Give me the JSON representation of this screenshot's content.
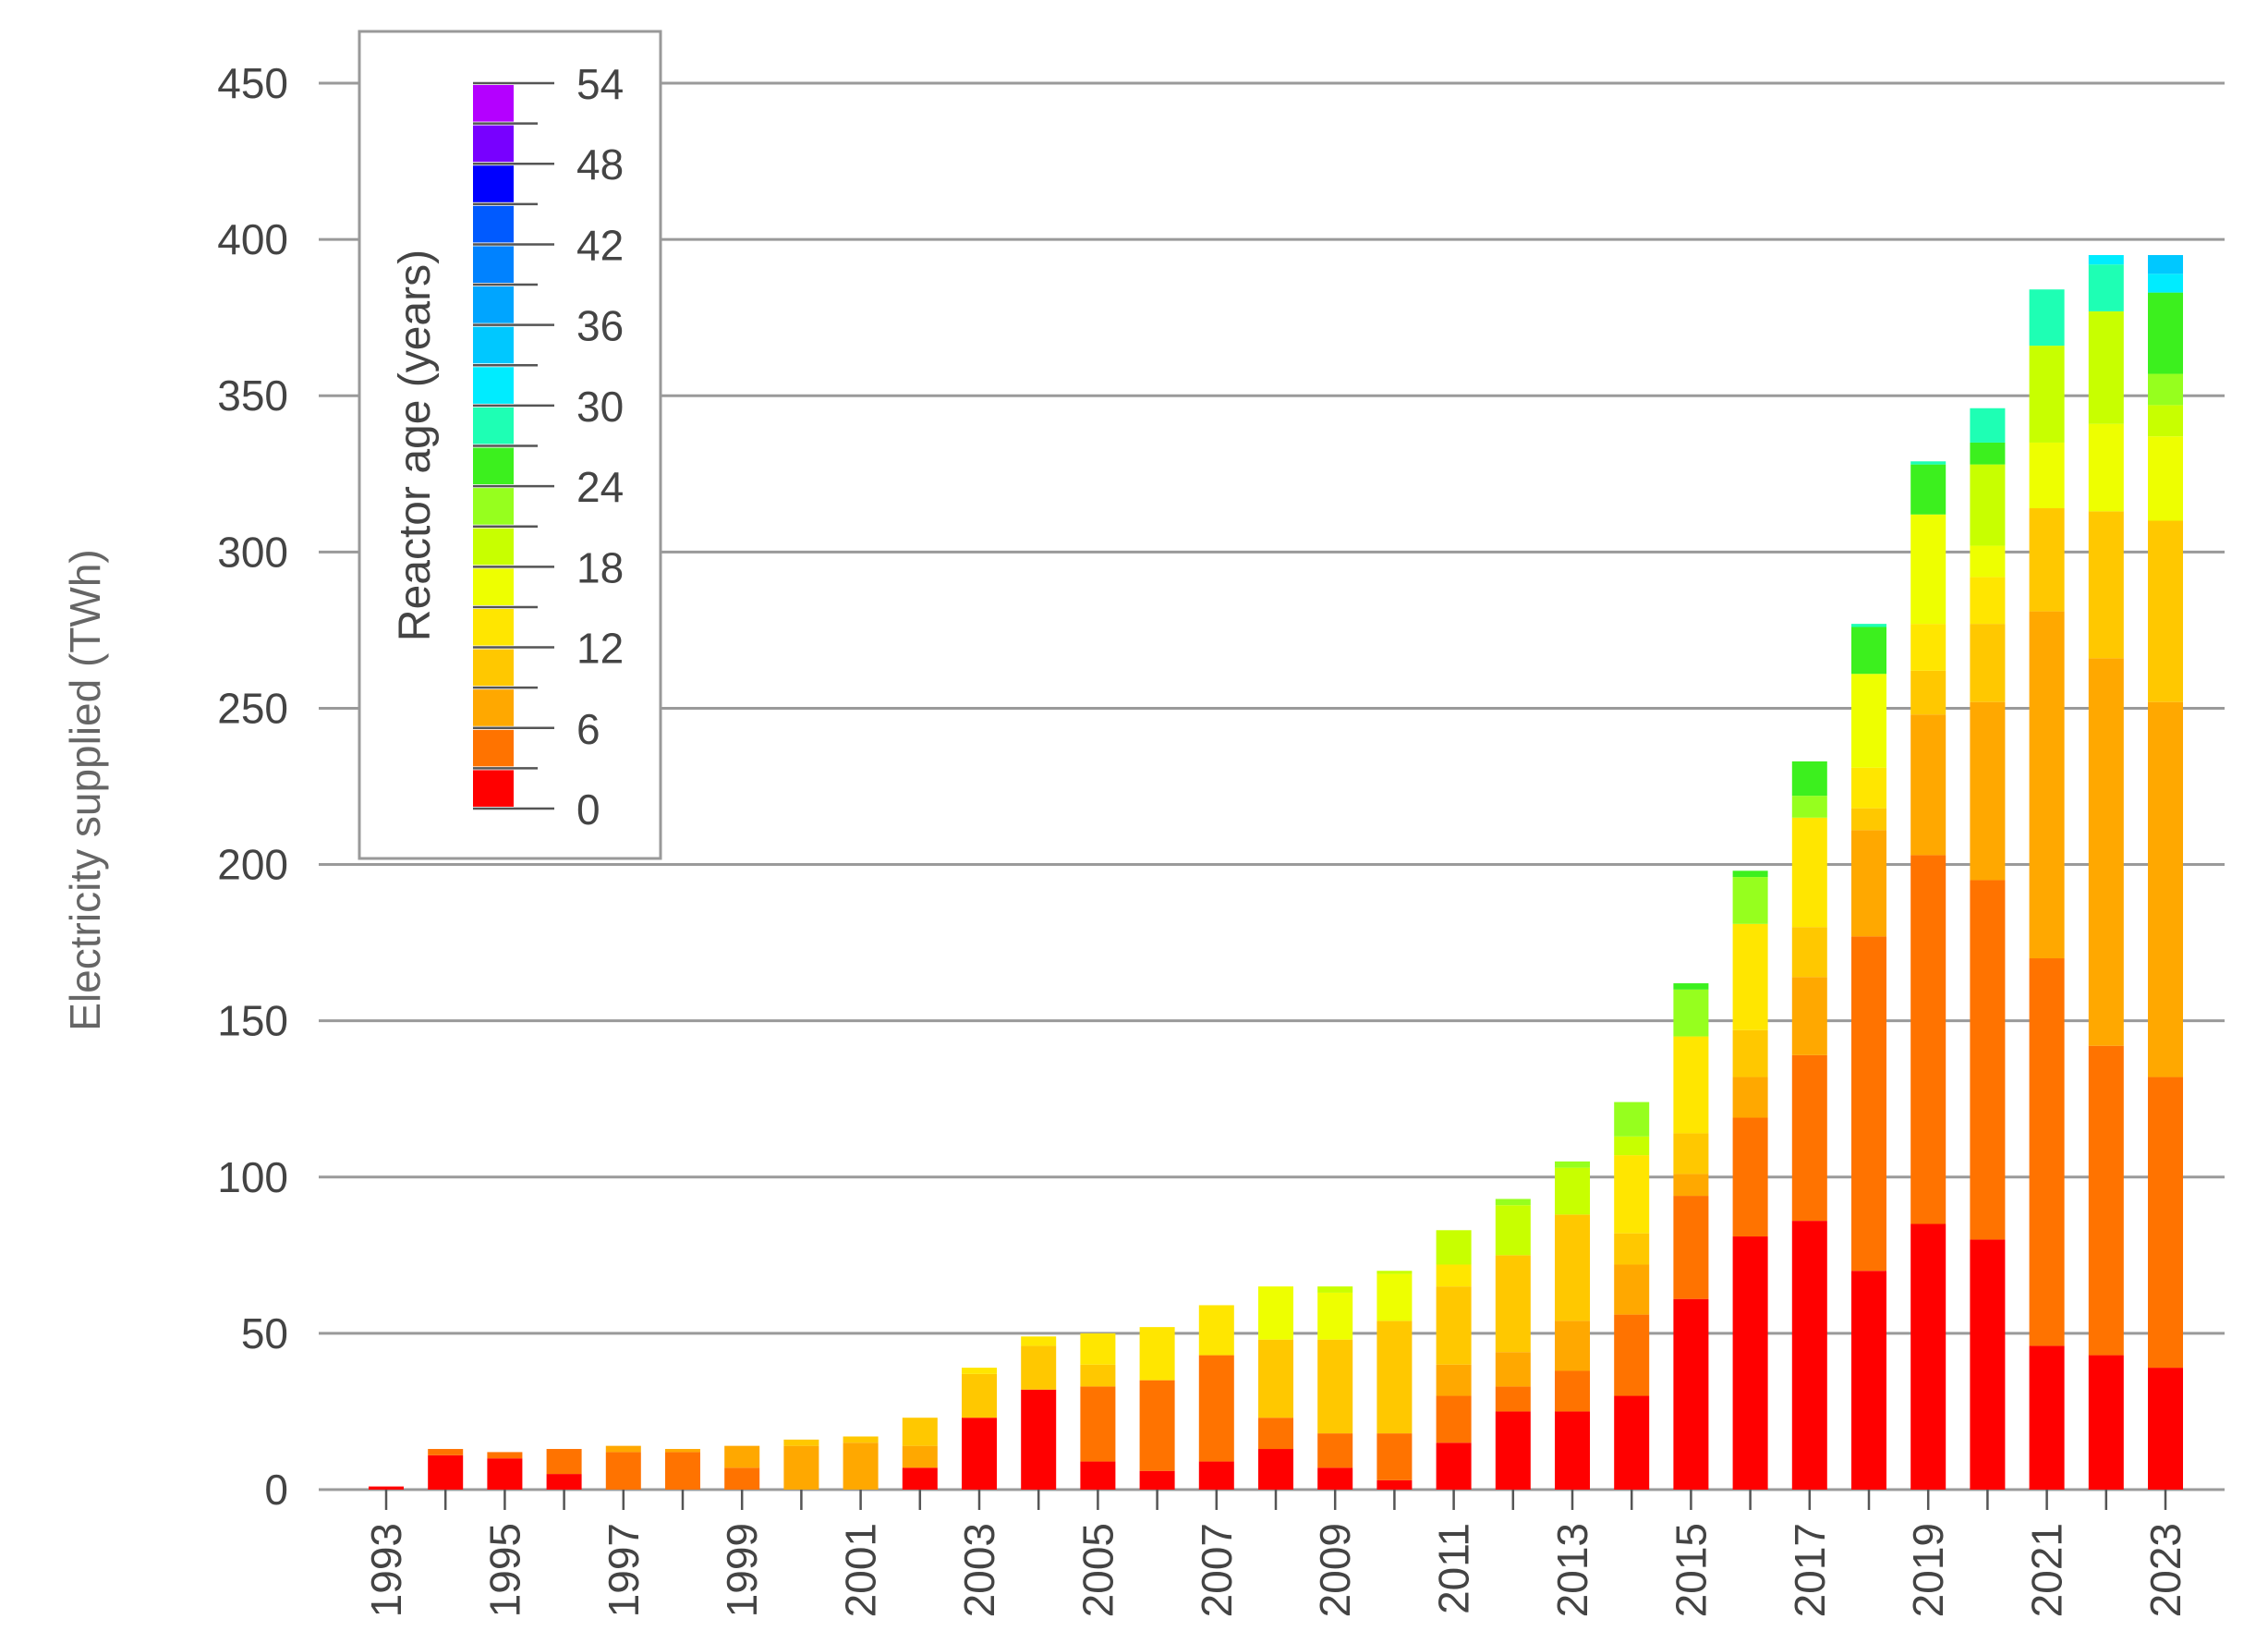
{
  "chart_data": {
    "type": "bar",
    "stacked": true,
    "xlabel": "",
    "ylabel": "Electricity supplied (TWh)",
    "ylim": [
      0,
      450
    ],
    "yticks": [
      0,
      50,
      100,
      150,
      200,
      250,
      300,
      350,
      400,
      450
    ],
    "grid": "horizontal",
    "categories": [
      "1993",
      "1994",
      "1995",
      "1996",
      "1997",
      "1998",
      "1999",
      "2000",
      "2001",
      "2002",
      "2003",
      "2004",
      "2005",
      "2006",
      "2007",
      "2008",
      "2009",
      "2010",
      "2011",
      "2012",
      "2013",
      "2014",
      "2015",
      "2016",
      "2017",
      "2018",
      "2019",
      "2020",
      "2021",
      "2022",
      "2023"
    ],
    "xtick_labels": [
      "1993",
      "1995",
      "1997",
      "1999",
      "2001",
      "2003",
      "2005",
      "2007",
      "2009",
      "2011",
      "2013",
      "2015",
      "2017",
      "2019",
      "2021",
      "2023"
    ],
    "segment_bin_years": 3,
    "colorbar": {
      "label": "Reactor age (years)",
      "tick_labels": [
        "0",
        "6",
        "12",
        "18",
        "24",
        "30",
        "36",
        "42",
        "48",
        "54"
      ],
      "placement": "upper-left",
      "bins": [
        {
          "from": 0,
          "to": 3,
          "color": "#ff0000"
        },
        {
          "from": 3,
          "to": 6,
          "color": "#ff7300"
        },
        {
          "from": 6,
          "to": 9,
          "color": "#ffa800"
        },
        {
          "from": 9,
          "to": 12,
          "color": "#ffc800"
        },
        {
          "from": 12,
          "to": 15,
          "color": "#ffe600"
        },
        {
          "from": 15,
          "to": 18,
          "color": "#eeff00"
        },
        {
          "from": 18,
          "to": 21,
          "color": "#c8ff00"
        },
        {
          "from": 21,
          "to": 24,
          "color": "#96ff1e"
        },
        {
          "from": 24,
          "to": 27,
          "color": "#3cf01e"
        },
        {
          "from": 27,
          "to": 30,
          "color": "#1effb4"
        },
        {
          "from": 30,
          "to": 33,
          "color": "#00ecff"
        },
        {
          "from": 33,
          "to": 36,
          "color": "#00c8ff"
        },
        {
          "from": 36,
          "to": 39,
          "color": "#00a5ff"
        },
        {
          "from": 39,
          "to": 42,
          "color": "#0082ff"
        },
        {
          "from": 42,
          "to": 45,
          "color": "#005aff"
        },
        {
          "from": 45,
          "to": 48,
          "color": "#0000ff"
        },
        {
          "from": 48,
          "to": 51,
          "color": "#7800ff"
        },
        {
          "from": 51,
          "to": 54,
          "color": "#b400ff"
        }
      ]
    },
    "stacks": [
      {
        "year": "1993",
        "segments": [
          1
        ]
      },
      {
        "year": "1994",
        "segments": [
          11,
          2
        ]
      },
      {
        "year": "1995",
        "segments": [
          10,
          2
        ]
      },
      {
        "year": "1996",
        "segments": [
          5,
          8
        ]
      },
      {
        "year": "1997",
        "segments": [
          0,
          12,
          2
        ]
      },
      {
        "year": "1998",
        "segments": [
          0,
          12,
          1
        ]
      },
      {
        "year": "1999",
        "segments": [
          0,
          7,
          7
        ]
      },
      {
        "year": "2000",
        "segments": [
          0,
          0,
          14,
          2
        ]
      },
      {
        "year": "2001",
        "segments": [
          0,
          0,
          15,
          2
        ]
      },
      {
        "year": "2002",
        "segments": [
          7,
          0,
          7,
          9
        ]
      },
      {
        "year": "2003",
        "segments": [
          23,
          0,
          0,
          14,
          2
        ]
      },
      {
        "year": "2004",
        "segments": [
          32,
          0,
          0,
          14,
          3
        ]
      },
      {
        "year": "2005",
        "segments": [
          9,
          24,
          0,
          7,
          10
        ]
      },
      {
        "year": "2006",
        "segments": [
          6,
          29,
          0,
          0,
          17
        ]
      },
      {
        "year": "2007",
        "segments": [
          9,
          34,
          0,
          0,
          16
        ]
      },
      {
        "year": "2008",
        "segments": [
          13,
          10,
          0,
          25,
          0,
          17
        ]
      },
      {
        "year": "2009",
        "segments": [
          7,
          11,
          0,
          30,
          0,
          15,
          2
        ]
      },
      {
        "year": "2010",
        "segments": [
          3,
          15,
          0,
          36,
          0,
          15,
          1
        ]
      },
      {
        "year": "2011",
        "segments": [
          15,
          15,
          10,
          25,
          7,
          0,
          11
        ]
      },
      {
        "year": "2012",
        "segments": [
          25,
          8,
          11,
          31,
          0,
          0,
          16,
          2
        ]
      },
      {
        "year": "2013",
        "segments": [
          25,
          13,
          16,
          34,
          0,
          0,
          15,
          2
        ]
      },
      {
        "year": "2014",
        "segments": [
          30,
          26,
          16,
          10,
          25,
          0,
          6,
          11
        ]
      },
      {
        "year": "2015",
        "segments": [
          61,
          33,
          7,
          13,
          31,
          0,
          0,
          15,
          2
        ]
      },
      {
        "year": "2016",
        "segments": [
          81,
          38,
          13,
          15,
          34,
          0,
          0,
          15,
          2
        ]
      },
      {
        "year": "2017",
        "segments": [
          86,
          53,
          25,
          16,
          35,
          0,
          0,
          7,
          11
        ]
      },
      {
        "year": "2018",
        "segments": [
          70,
          107,
          34,
          7,
          13,
          30,
          0,
          0,
          15,
          1
        ]
      },
      {
        "year": "2019",
        "segments": [
          85,
          118,
          45,
          14,
          15,
          35,
          0,
          0,
          16,
          1
        ]
      },
      {
        "year": "2020",
        "segments": [
          80,
          115,
          57,
          25,
          15,
          10,
          26,
          0,
          7,
          11
        ]
      },
      {
        "year": "2021",
        "segments": [
          46,
          124,
          111,
          33,
          0,
          21,
          31,
          0,
          0,
          18
        ]
      },
      {
        "year": "2022",
        "segments": [
          43,
          99,
          124,
          47,
          0,
          28,
          36,
          0,
          0,
          15,
          3
        ]
      },
      {
        "year": "2023",
        "segments": [
          39,
          93,
          120,
          58,
          0,
          27,
          10,
          10,
          26,
          0,
          6,
          6
        ]
      }
    ]
  }
}
